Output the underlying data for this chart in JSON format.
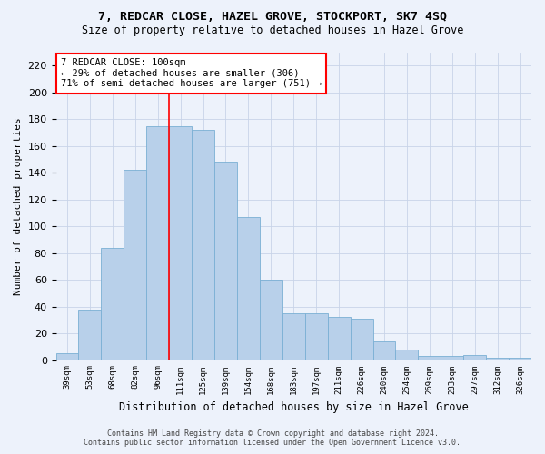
{
  "title1": "7, REDCAR CLOSE, HAZEL GROVE, STOCKPORT, SK7 4SQ",
  "title2": "Size of property relative to detached houses in Hazel Grove",
  "xlabel": "Distribution of detached houses by size in Hazel Grove",
  "ylabel": "Number of detached properties",
  "categories": [
    "39sqm",
    "53sqm",
    "68sqm",
    "82sqm",
    "96sqm",
    "111sqm",
    "125sqm",
    "139sqm",
    "154sqm",
    "168sqm",
    "183sqm",
    "197sqm",
    "211sqm",
    "226sqm",
    "240sqm",
    "254sqm",
    "269sqm",
    "283sqm",
    "297sqm",
    "312sqm",
    "326sqm"
  ],
  "values": [
    5,
    38,
    84,
    142,
    175,
    175,
    172,
    148,
    107,
    60,
    35,
    35,
    32,
    31,
    14,
    8,
    3,
    3,
    4,
    2,
    2
  ],
  "bar_color": "#b8d0ea",
  "bar_edge_color": "#7aafd4",
  "grid_color": "#c8d4e8",
  "vline_x": 4.5,
  "vline_color": "red",
  "annotation_text": "7 REDCAR CLOSE: 100sqm\n← 29% of detached houses are smaller (306)\n71% of semi-detached houses are larger (751) →",
  "annotation_box_color": "white",
  "annotation_box_edge_color": "red",
  "footer1": "Contains HM Land Registry data © Crown copyright and database right 2024.",
  "footer2": "Contains public sector information licensed under the Open Government Licence v3.0.",
  "ylim": [
    0,
    230
  ],
  "yticks": [
    0,
    20,
    40,
    60,
    80,
    100,
    120,
    140,
    160,
    180,
    200,
    220
  ],
  "background_color": "#edf2fb"
}
